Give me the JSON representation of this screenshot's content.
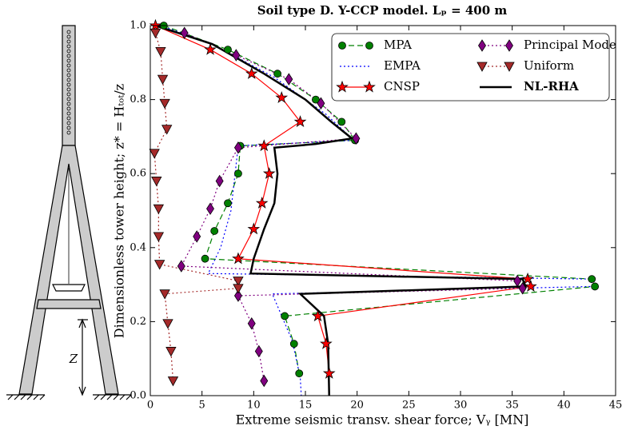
{
  "chart_data": {
    "type": "line",
    "title": "Soil type D. Y-CCP model. Lₚ = 400 m",
    "xlabel": "Extreme seismic transv. shear force; Vᵧ [MN]",
    "ylabel": "Dimensionless tower height; z* = Hₜₒₜ/z",
    "annotations": [
      "Z"
    ],
    "xlim": [
      0,
      45
    ],
    "ylim": [
      0,
      1
    ],
    "xticks": [
      0,
      5,
      10,
      15,
      20,
      25,
      30,
      35,
      40,
      45
    ],
    "yticks": [
      {
        "value": 0,
        "label": "0.0"
      },
      0.2,
      0.4,
      0.6,
      0.8,
      {
        "value": 1,
        "label": "1.0"
      }
    ],
    "legend": "upper right",
    "series": [
      {
        "name": "MPA",
        "color": "#008000",
        "linestyle": "dashed",
        "marker": "circle",
        "x": [
          1.3,
          7.5,
          12.3,
          16,
          18.5,
          19.8,
          8.7,
          8.5,
          7.5,
          6.2,
          5.3,
          42.7,
          43,
          13,
          13.9,
          14.4
        ],
        "y": [
          1.0,
          0.935,
          0.87,
          0.8,
          0.74,
          0.69,
          0.675,
          0.6,
          0.52,
          0.445,
          0.37,
          0.315,
          0.295,
          0.215,
          0.14,
          0.06
        ]
      },
      {
        "name": "EMPA",
        "color": "#0000ff",
        "linestyle": "dotted",
        "marker": "none",
        "x": [
          1,
          6,
          12,
          17,
          19.7,
          8.5,
          7.8,
          6.8,
          5.6,
          42.5,
          42.8,
          11.8,
          13.7,
          14.5,
          14.6
        ],
        "y": [
          1.0,
          0.95,
          0.86,
          0.76,
          0.69,
          0.675,
          0.5,
          0.4,
          0.33,
          0.315,
          0.295,
          0.275,
          0.15,
          0.05,
          0
        ]
      },
      {
        "name": "CNSP",
        "color": "#ff0000",
        "linestyle": "solid",
        "marker": "star",
        "x": [
          0.5,
          5.8,
          9.8,
          12.7,
          14.5,
          11,
          11.5,
          10.8,
          10,
          8.5,
          36.5,
          36.8,
          16.2,
          17,
          17.3
        ],
        "y": [
          1.0,
          0.935,
          0.87,
          0.805,
          0.74,
          0.675,
          0.6,
          0.52,
          0.45,
          0.37,
          0.315,
          0.295,
          0.215,
          0.14,
          0.06
        ]
      },
      {
        "name": "Principal Mode",
        "color": "#800080",
        "linestyle": "dotted",
        "marker": "diamond",
        "x": [
          3.3,
          8.3,
          13.4,
          16.5,
          19.9,
          8.5,
          6.7,
          5.8,
          4.5,
          3,
          35.5,
          36,
          8.5,
          9.8,
          10.5,
          11
        ],
        "y": [
          0.98,
          0.92,
          0.855,
          0.79,
          0.695,
          0.67,
          0.58,
          0.505,
          0.43,
          0.35,
          0.31,
          0.29,
          0.27,
          0.195,
          0.12,
          0.04
        ]
      },
      {
        "name": "Uniform",
        "color": "#a52a2a",
        "linestyle": "dotted",
        "marker": "triangle",
        "x": [
          0.5,
          1,
          1.2,
          1.4,
          1.6,
          0.4,
          0.6,
          0.8,
          0.8,
          0.9,
          8.5,
          8.5,
          1.4,
          1.7,
          2,
          2.2
        ],
        "y": [
          0.98,
          0.93,
          0.855,
          0.79,
          0.72,
          0.655,
          0.58,
          0.505,
          0.43,
          0.355,
          0.31,
          0.29,
          0.275,
          0.195,
          0.12,
          0.04
        ]
      },
      {
        "name": "NL-RHA",
        "color": "#000000",
        "linestyle": "thick",
        "marker": "none",
        "x": [
          0.5,
          6,
          11,
          15,
          17.5,
          19.5,
          16,
          12,
          12.3,
          12,
          11,
          10,
          9.7,
          36,
          36.3,
          14.5,
          16.8,
          17.2,
          17.3
        ],
        "y": [
          1.0,
          0.95,
          0.87,
          0.8,
          0.74,
          0.695,
          0.68,
          0.67,
          0.6,
          0.52,
          0.45,
          0.37,
          0.33,
          0.315,
          0.295,
          0.275,
          0.215,
          0.14,
          0
        ]
      }
    ]
  }
}
